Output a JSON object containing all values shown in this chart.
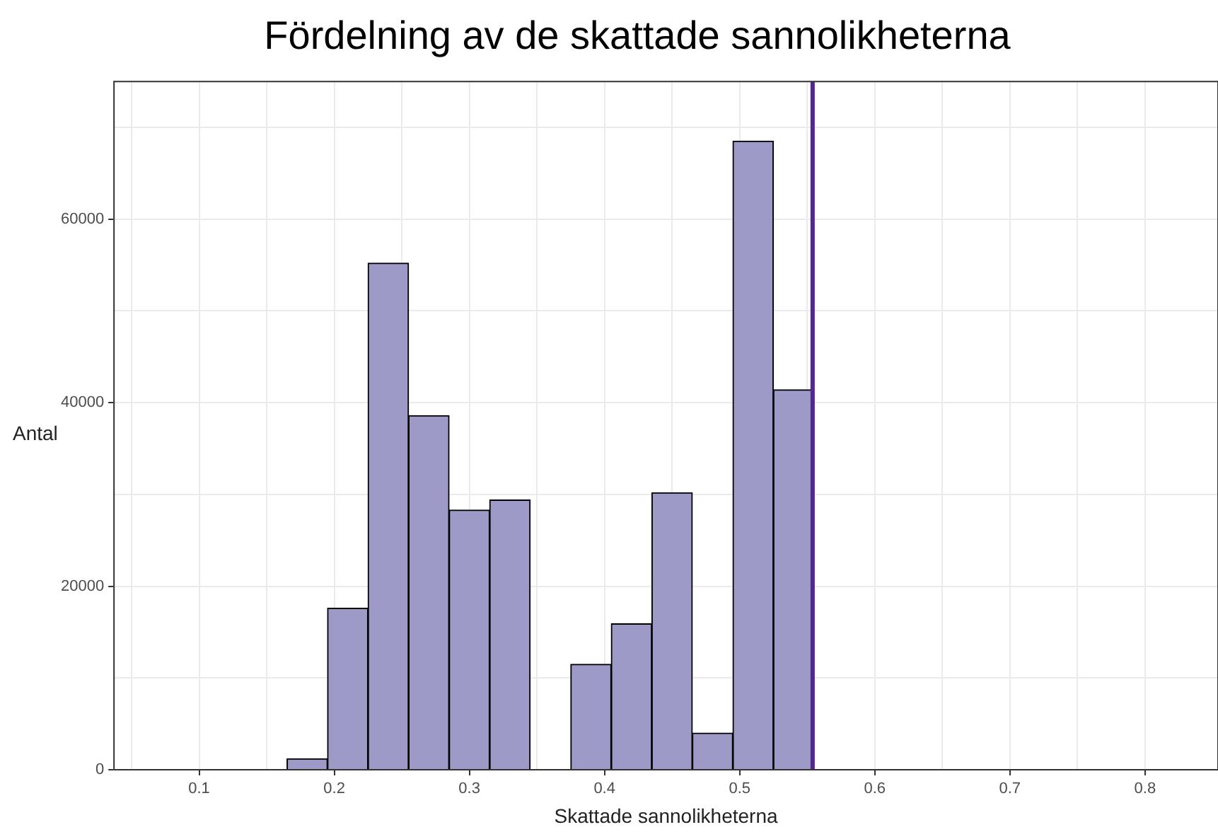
{
  "chart_data": {
    "type": "histogram",
    "title": "Fördelning av de skattade sannolikheterna",
    "xlabel": "Skattade sannolikheterna",
    "ylabel": "Antal",
    "bins": [
      0.165,
      0.195,
      0.225,
      0.255,
      0.285,
      0.315,
      0.345,
      0.375,
      0.405,
      0.435,
      0.465,
      0.495,
      0.525,
      0.555
    ],
    "values": [
      1200,
      17600,
      55200,
      38600,
      28300,
      29400,
      0,
      11500,
      15900,
      30200,
      4000,
      68500,
      41400
    ],
    "color": "#9e9ac8",
    "xlim": [
      0.037,
      0.854
    ],
    "xticks": [
      {
        "value": 0.05,
        "label": null
      },
      0.1,
      {
        "value": 0.15,
        "label": null
      },
      0.2,
      {
        "value": 0.25,
        "label": null
      },
      0.3,
      {
        "value": 0.35,
        "label": null
      },
      0.4,
      {
        "value": 0.45,
        "label": null
      },
      0.5,
      {
        "value": 0.55,
        "label": null
      },
      0.6,
      {
        "value": 0.65,
        "label": null
      },
      0.7,
      {
        "value": 0.75,
        "label": null
      },
      0.8
    ],
    "ylim": [
      0,
      75000
    ],
    "yticks": [
      0,
      {
        "value": 10000,
        "label": null
      },
      20000,
      {
        "value": 30000,
        "label": null
      },
      40000,
      {
        "value": 50000,
        "label": null
      },
      60000,
      {
        "value": 70000,
        "label": null
      }
    ],
    "ref_lines": [
      {
        "axis": "x",
        "value": 0.554,
        "color": "#54278f"
      }
    ],
    "grid": true,
    "legend": false
  }
}
